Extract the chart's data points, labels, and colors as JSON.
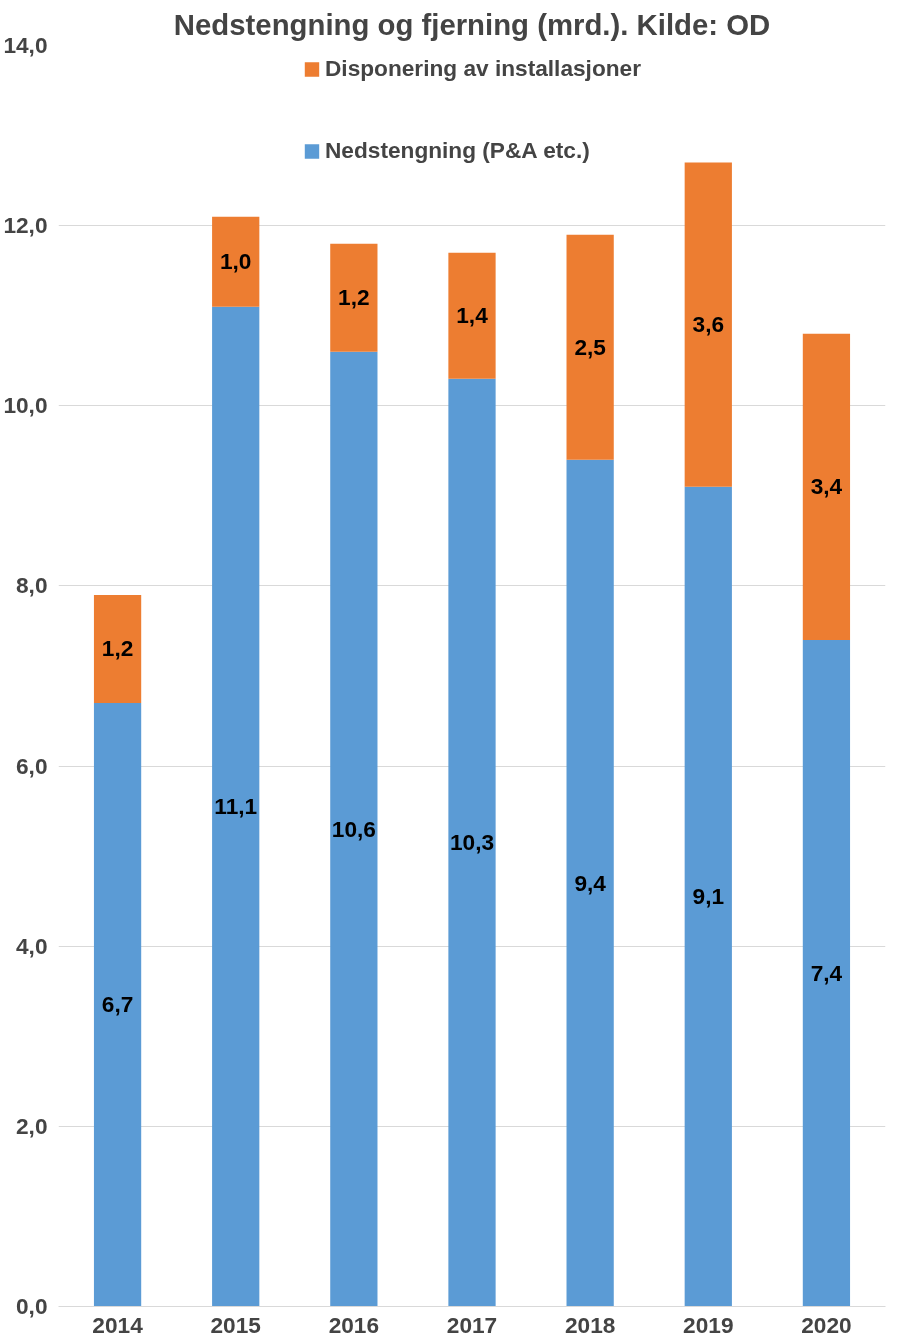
{
  "chart_data": {
    "type": "bar",
    "stacked": true,
    "title": "Nedstengning og fjerning (mrd.). Kilde: OD",
    "categories": [
      "2014",
      "2015",
      "2016",
      "2017",
      "2018",
      "2019",
      "2020"
    ],
    "series": [
      {
        "name": "Nedstengning (P&A etc.)",
        "color": "#5b9bd5",
        "values": [
          6.7,
          11.1,
          10.6,
          10.3,
          9.4,
          9.1,
          7.4
        ],
        "value_labels": [
          "6,7",
          "11,1",
          "10,6",
          "10,3",
          "9,4",
          "9,1",
          "7,4"
        ]
      },
      {
        "name": "Disponering av installasjoner",
        "color": "#ed7d31",
        "values": [
          1.2,
          1.0,
          1.2,
          1.4,
          2.5,
          3.6,
          3.4
        ],
        "value_labels": [
          "1,2",
          "1,0",
          "1,2",
          "1,4",
          "2,5",
          "3,6",
          "3,4"
        ]
      }
    ],
    "ylim": [
      0,
      14
    ],
    "yticks": [
      {
        "value": 0,
        "label": "0,0"
      },
      {
        "value": 2,
        "label": "2,0"
      },
      {
        "value": 4,
        "label": "4,0"
      },
      {
        "value": 6,
        "label": "6,0"
      },
      {
        "value": 8,
        "label": "8,0"
      },
      {
        "value": 10,
        "label": "10,0"
      },
      {
        "value": 12,
        "label": "12,0"
      },
      {
        "value": 14,
        "label": "14,0"
      }
    ],
    "grid": "y",
    "legend": "top"
  }
}
